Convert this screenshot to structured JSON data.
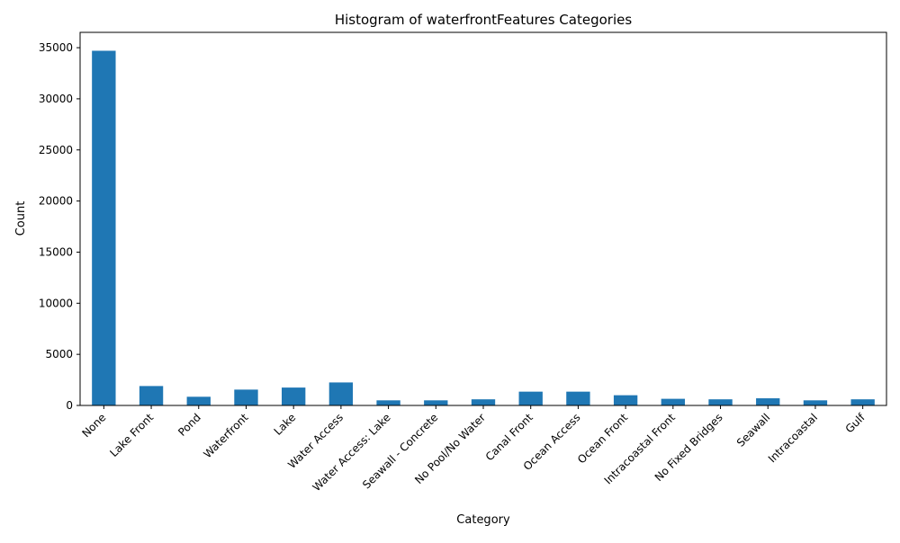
{
  "chart_data": {
    "type": "bar",
    "title": "Histogram of waterfrontFeatures Categories",
    "xlabel": "Category",
    "ylabel": "Count",
    "categories": [
      "None",
      "Lake Front",
      "Pond",
      "Waterfront",
      "Lake",
      "Water Access",
      "Water Access: Lake",
      "Seawall - Concrete",
      "No Pool/No Water",
      "Canal Front",
      "Ocean Access",
      "Ocean Front",
      "Intracoastal Front",
      "No Fixed Bridges",
      "Seawall",
      "Intracoastal",
      "Gulf"
    ],
    "values": [
      34700,
      1900,
      850,
      1550,
      1750,
      2250,
      500,
      500,
      600,
      1350,
      1350,
      1000,
      650,
      600,
      700,
      500,
      600
    ],
    "ylim": [
      0,
      36500
    ],
    "yticks": [
      0,
      5000,
      10000,
      15000,
      20000,
      25000,
      30000,
      35000
    ],
    "bar_color": "#1f77b4",
    "grid": false,
    "legend": "none"
  }
}
